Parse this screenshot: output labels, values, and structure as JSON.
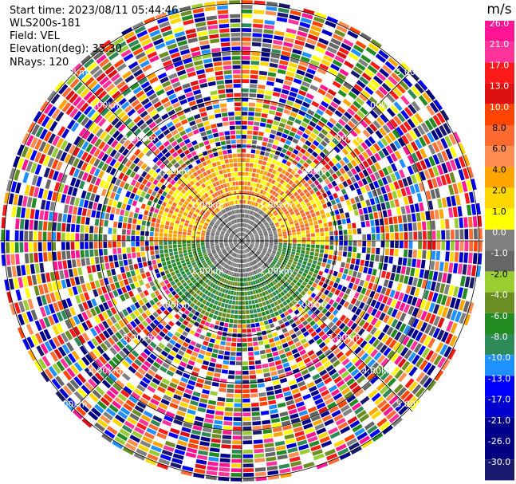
{
  "header": {
    "start_time": "Start time: 2023/08/11 05:44:46",
    "instrument": "WLS200s-181",
    "field": "Field: VEL",
    "elevation": "Elevation(deg): 35.30",
    "nrays": "NRays: 120"
  },
  "colorbar": {
    "unit": "m/s",
    "ticks": [
      "26.0",
      "21.0",
      "17.0",
      "13.0",
      "10.0",
      "8.0",
      "6.0",
      "4.0",
      "2.0",
      "1.0",
      "0.0",
      "-1.0",
      "-2.0",
      "-4.0",
      "-6.0",
      "-8.0",
      "-10.0",
      "-13.0",
      "-17.0",
      "-21.0",
      "-26.0",
      "-30.0"
    ],
    "colors": [
      "#ff1493",
      "#ff3399",
      "#ff1a1a",
      "#dd1111",
      "#ff4500",
      "#ff6a30",
      "#ff8c50",
      "#ffa500",
      "#ffd700",
      "#ffff00",
      "#808080",
      "#666666",
      "#9acd32",
      "#6b8e23",
      "#228b22",
      "#2e8b57",
      "#1e90ff",
      "#0000ff",
      "#0000cd",
      "#00008b",
      "#000080",
      "#191970"
    ]
  },
  "chart_data": {
    "type": "heatmap",
    "projection": "polar PPI",
    "field": "VEL",
    "units": "m/s",
    "range_rings_km": [
      1,
      2,
      3,
      4,
      5
    ],
    "ring_labels": [
      "1.00km",
      "2.00km",
      "3.00km",
      "4.00km",
      "5.00km"
    ],
    "n_rays": 120,
    "colorbar_min": -30.0,
    "colorbar_max": 26.0,
    "pattern": {
      "north_sector_inner_km": 1.5,
      "north_sector_values_ms": [
        1,
        4,
        8
      ],
      "south_sector_inner_km": 1.3,
      "south_sector_values_ms": [
        -4,
        -6,
        -8
      ],
      "center_values_ms": [
        0
      ],
      "outer_noise": "random values across full scale beyond ~1.5 km"
    }
  }
}
